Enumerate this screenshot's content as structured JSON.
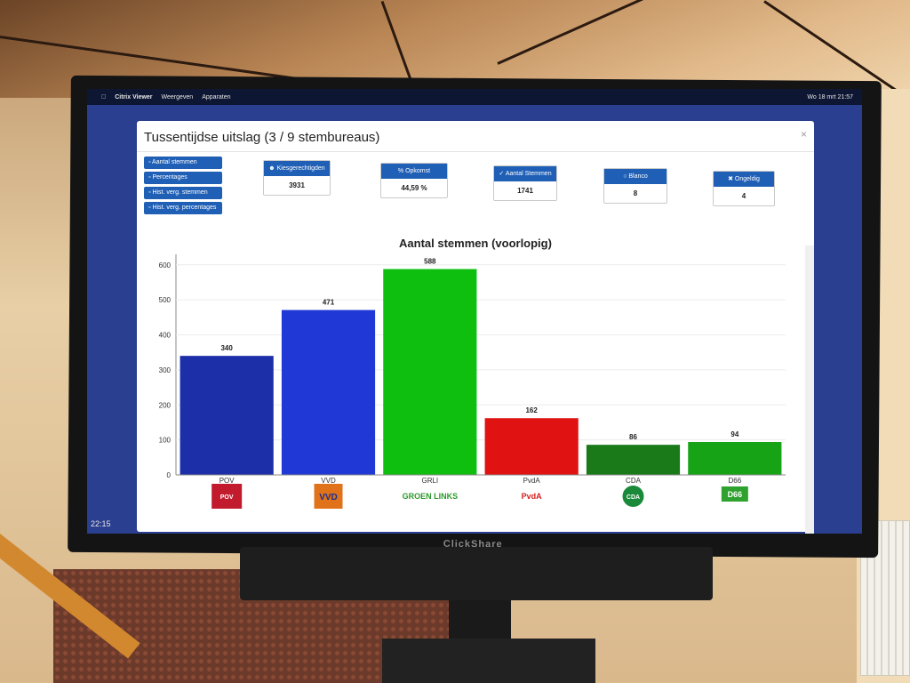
{
  "app": {
    "menu": [
      "Citrix Viewer",
      "Weergeven",
      "Apparaten"
    ],
    "status_time": "Wo 18 mrt 21:57",
    "clock": "22:15",
    "tv_brand": "ClickShare"
  },
  "modal": {
    "title": "Tussentijdse uitslag (3 / 9 stembureaus)",
    "close": "×"
  },
  "side_buttons": [
    {
      "icon": "bar-chart-icon",
      "label": "Aantal stemmen"
    },
    {
      "icon": "bar-chart-icon",
      "label": "Percentages"
    },
    {
      "icon": "bar-chart-icon",
      "label": "Hist. verg. stemmen"
    },
    {
      "icon": "bar-chart-icon",
      "label": "Hist. verg. percentages"
    }
  ],
  "stats": [
    {
      "icon": "users-icon",
      "label": "Kiesgerechtigden",
      "value": "3931"
    },
    {
      "icon": "percent-icon",
      "label": "Opkomst",
      "value": "44,59 %"
    },
    {
      "icon": "check-icon",
      "label": "Aantal Stemmen",
      "value": "1741"
    },
    {
      "icon": "circle-icon",
      "label": "Blanco",
      "value": "8"
    },
    {
      "icon": "x-icon",
      "label": "Ongeldig",
      "value": "4"
    }
  ],
  "chart_data": {
    "type": "bar",
    "title": "Aantal stemmen (voorlopig)",
    "categories": [
      "POV",
      "VVD",
      "GRLI",
      "PvdA",
      "CDA",
      "D66"
    ],
    "values": [
      340,
      471,
      588,
      162,
      86,
      94
    ],
    "colors": [
      "#1c2ea8",
      "#1f38d6",
      "#0fbf0f",
      "#e01212",
      "#1a7a1a",
      "#16a416"
    ],
    "ylim": [
      0,
      630
    ],
    "yticks": [
      0,
      100,
      200,
      300,
      400,
      500,
      600
    ],
    "grid": true,
    "logos": [
      "POV",
      "VVD",
      "GROEN LINKS",
      "PvdA",
      "CDA",
      "D66"
    ]
  }
}
